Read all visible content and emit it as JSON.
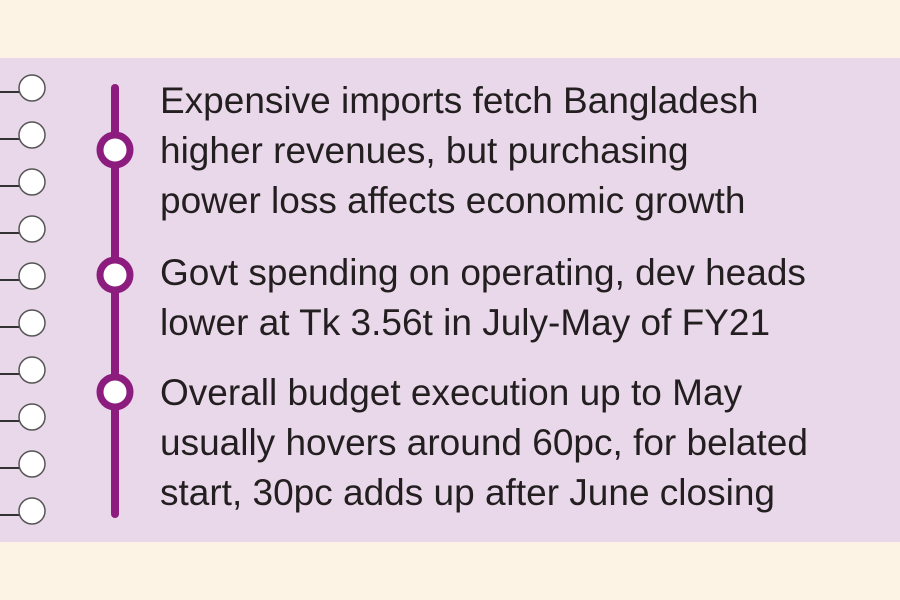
{
  "items": [
    {
      "lines": [
        "Expensive imports fetch Bangladesh",
        "higher revenues, but purchasing",
        "power loss affects economic growth"
      ]
    },
    {
      "lines": [
        "Govt spending on operating, dev heads",
        "lower at Tk 3.56t in July-May of FY21"
      ]
    },
    {
      "lines": [
        "Overall budget execution up to May",
        "usually hovers around 60pc, for belated",
        "start, 30pc adds up after June closing"
      ]
    }
  ]
}
